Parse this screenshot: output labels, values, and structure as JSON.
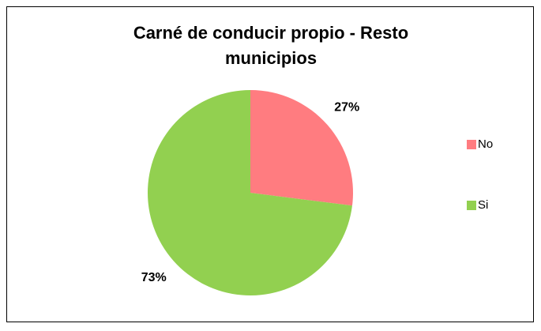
{
  "chart_data": {
    "type": "pie",
    "title": "Carné de conducir propio - Resto municipios",
    "categories": [
      "No",
      "Si"
    ],
    "values": [
      27,
      73
    ],
    "value_labels": [
      "27%",
      "73%"
    ],
    "colors": [
      "#ff7c80",
      "#92d050"
    ],
    "legend": "right"
  }
}
